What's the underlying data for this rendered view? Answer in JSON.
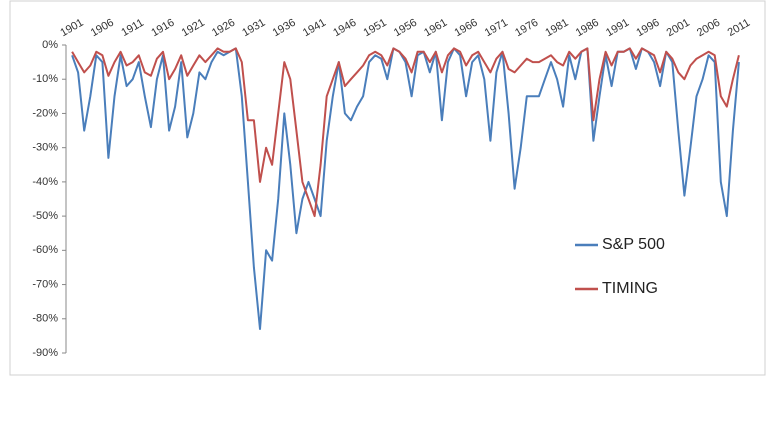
{
  "chart_data": {
    "type": "line",
    "x": [
      1901,
      1902,
      1903,
      1904,
      1905,
      1906,
      1907,
      1908,
      1909,
      1910,
      1911,
      1912,
      1913,
      1914,
      1915,
      1916,
      1917,
      1918,
      1919,
      1920,
      1921,
      1922,
      1923,
      1924,
      1925,
      1926,
      1927,
      1928,
      1929,
      1930,
      1931,
      1932,
      1933,
      1934,
      1935,
      1936,
      1937,
      1938,
      1939,
      1940,
      1941,
      1942,
      1943,
      1944,
      1945,
      1946,
      1947,
      1948,
      1949,
      1950,
      1951,
      1952,
      1953,
      1954,
      1955,
      1956,
      1957,
      1958,
      1959,
      1960,
      1961,
      1962,
      1963,
      1964,
      1965,
      1966,
      1967,
      1968,
      1969,
      1970,
      1971,
      1972,
      1973,
      1974,
      1975,
      1976,
      1977,
      1978,
      1979,
      1980,
      1981,
      1982,
      1983,
      1984,
      1985,
      1986,
      1987,
      1988,
      1989,
      1990,
      1991,
      1992,
      1993,
      1994,
      1995,
      1996,
      1997,
      1998,
      1999,
      2000,
      2001,
      2002,
      2003,
      2004,
      2005,
      2006,
      2007,
      2008,
      2009,
      2010,
      2011
    ],
    "series": [
      {
        "name": "S&P 500",
        "color": "#4a7ebb",
        "values": [
          -3,
          -8,
          -25,
          -15,
          -3,
          -5,
          -33,
          -15,
          -3,
          -12,
          -10,
          -5,
          -15,
          -24,
          -10,
          -3,
          -25,
          -18,
          -5,
          -27,
          -20,
          -8,
          -10,
          -5,
          -2,
          -3,
          -2,
          -1,
          -15,
          -40,
          -65,
          -83,
          -60,
          -63,
          -45,
          -20,
          -35,
          -55,
          -45,
          -40,
          -45,
          -50,
          -28,
          -15,
          -5,
          -20,
          -22,
          -18,
          -15,
          -5,
          -3,
          -4,
          -10,
          -1,
          -2,
          -5,
          -15,
          -3,
          -2,
          -8,
          -2,
          -22,
          -5,
          -1,
          -3,
          -15,
          -5,
          -3,
          -10,
          -28,
          -8,
          -2,
          -20,
          -42,
          -30,
          -15,
          -15,
          -15,
          -10,
          -5,
          -10,
          -18,
          -3,
          -10,
          -2,
          -1,
          -28,
          -15,
          -3,
          -12,
          -2,
          -2,
          -1,
          -7,
          -1,
          -2,
          -5,
          -12,
          -2,
          -5,
          -25,
          -44,
          -30,
          -15,
          -10,
          -3,
          -5,
          -40,
          -50,
          -25,
          -5
        ]
      },
      {
        "name": "TIMING",
        "color": "#c0504d",
        "values": [
          -2,
          -5,
          -8,
          -6,
          -2,
          -3,
          -9,
          -5,
          -2,
          -6,
          -5,
          -3,
          -8,
          -9,
          -4,
          -2,
          -10,
          -7,
          -3,
          -9,
          -6,
          -3,
          -5,
          -3,
          -1,
          -2,
          -2,
          -1,
          -5,
          -22,
          -22,
          -40,
          -30,
          -35,
          -20,
          -5,
          -10,
          -25,
          -40,
          -45,
          -50,
          -35,
          -15,
          -10,
          -5,
          -12,
          -10,
          -8,
          -6,
          -3,
          -2,
          -3,
          -6,
          -1,
          -2,
          -4,
          -8,
          -2,
          -2,
          -5,
          -2,
          -8,
          -3,
          -1,
          -2,
          -6,
          -3,
          -2,
          -5,
          -8,
          -4,
          -2,
          -7,
          -8,
          -6,
          -4,
          -5,
          -5,
          -4,
          -3,
          -5,
          -6,
          -2,
          -4,
          -2,
          -1,
          -22,
          -10,
          -2,
          -6,
          -2,
          -2,
          -1,
          -4,
          -1,
          -2,
          -3,
          -8,
          -2,
          -4,
          -8,
          -10,
          -6,
          -4,
          -3,
          -2,
          -3,
          -15,
          -18,
          -10,
          -3
        ]
      }
    ],
    "xlim": [
      1900,
      2012
    ],
    "xticks": [
      1901,
      1906,
      1911,
      1916,
      1921,
      1926,
      1931,
      1936,
      1941,
      1946,
      1951,
      1956,
      1961,
      1966,
      1971,
      1976,
      1981,
      1986,
      1991,
      1996,
      2001,
      2006,
      2011
    ],
    "ylim": [
      -90,
      0
    ],
    "yticks": [
      {
        "value": 0,
        "label": "0%"
      },
      {
        "value": -10,
        "label": "-10%"
      },
      {
        "value": -20,
        "label": "-20%"
      },
      {
        "value": -30,
        "label": "-30%"
      },
      {
        "value": -40,
        "label": "-40%"
      },
      {
        "value": -50,
        "label": "-50%"
      },
      {
        "value": -60,
        "label": "-60%"
      },
      {
        "value": -70,
        "label": "-70%"
      },
      {
        "value": -80,
        "label": "-80%"
      },
      {
        "value": -90,
        "label": "-90%"
      }
    ],
    "grid": false
  }
}
